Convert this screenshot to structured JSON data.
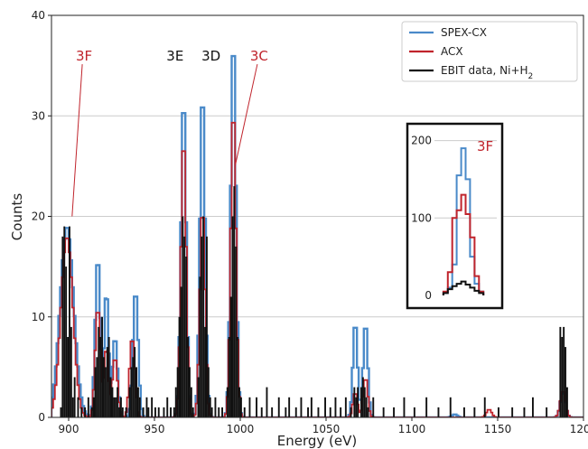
{
  "chart_data": {
    "type": "line",
    "style": "step histogram",
    "xlabel": "Energy (eV)",
    "ylabel": "Counts",
    "xlim": [
      890,
      1200
    ],
    "ylim": [
      0,
      40
    ],
    "xticks": [
      "900",
      "950",
      "1000",
      "1050",
      "1100",
      "1150",
      "1200"
    ],
    "yticks": [
      "0",
      "10",
      "20",
      "30",
      "40"
    ],
    "grid": "horizontal",
    "legend_position": "top-right",
    "colors": {
      "spex": "#4a8ac9",
      "acx": "#c0242c",
      "ebit": "#111111",
      "grid": "#cccccc"
    },
    "series": [
      {
        "name": "SPEX-CX",
        "color": "#4a8ac9",
        "peaks": [
          [
            899,
            19,
            4
          ],
          [
            917,
            16,
            1.5
          ],
          [
            922,
            12.7,
            1.2
          ],
          [
            927,
            8,
            1.5
          ],
          [
            939,
            12.7,
            1.5
          ],
          [
            967,
            32,
            1.5
          ],
          [
            978,
            32.6,
            1.5
          ],
          [
            996,
            38,
            1.5
          ],
          [
            1067,
            9.6,
            1.3
          ],
          [
            1073,
            9.5,
            1.3
          ],
          [
            1125,
            0.3,
            1.5
          ],
          [
            1188,
            2.5,
            1.5
          ]
        ]
      },
      {
        "name": "ACX",
        "color": "#c0242c",
        "peaks": [
          [
            899,
            18,
            3.5
          ],
          [
            917,
            11,
            1.5
          ],
          [
            922,
            7,
            1.2
          ],
          [
            927,
            6,
            1.5
          ],
          [
            937,
            8,
            1.5
          ],
          [
            967,
            28,
            1.5
          ],
          [
            978,
            21,
            1.5
          ],
          [
            996,
            31,
            1.5
          ],
          [
            1067,
            2.5,
            1.3
          ],
          [
            1073,
            4,
            1.3
          ],
          [
            1145,
            0.8,
            1.5
          ],
          [
            1188,
            2.7,
            1.5
          ]
        ]
      },
      {
        "name": "EBIT data, Ni+H$_2$",
        "color": "#111111",
        "bars": [
          [
            895,
            1
          ],
          [
            896,
            18
          ],
          [
            897,
            19
          ],
          [
            898,
            15
          ],
          [
            899,
            8
          ],
          [
            900,
            19
          ],
          [
            901,
            9
          ],
          [
            902,
            2
          ],
          [
            903,
            4
          ],
          [
            905,
            2
          ],
          [
            907,
            1
          ],
          [
            909,
            1
          ],
          [
            911,
            2
          ],
          [
            913,
            1
          ],
          [
            914,
            2
          ],
          [
            915,
            5
          ],
          [
            916,
            6
          ],
          [
            917,
            9
          ],
          [
            918,
            8
          ],
          [
            919,
            10
          ],
          [
            920,
            6
          ],
          [
            921,
            5
          ],
          [
            922,
            7
          ],
          [
            923,
            8
          ],
          [
            924,
            4
          ],
          [
            925,
            3
          ],
          [
            926,
            2
          ],
          [
            927,
            2
          ],
          [
            928,
            3
          ],
          [
            929,
            1
          ],
          [
            930,
            2
          ],
          [
            931,
            1
          ],
          [
            933,
            1
          ],
          [
            935,
            3
          ],
          [
            936,
            5
          ],
          [
            937,
            6
          ],
          [
            938,
            7
          ],
          [
            939,
            5
          ],
          [
            940,
            3
          ],
          [
            941,
            2
          ],
          [
            943,
            1
          ],
          [
            945,
            2
          ],
          [
            946,
            1
          ],
          [
            948,
            2
          ],
          [
            950,
            1
          ],
          [
            952,
            1
          ],
          [
            955,
            1
          ],
          [
            957,
            2
          ],
          [
            959,
            1
          ],
          [
            961,
            1
          ],
          [
            962,
            3
          ],
          [
            963,
            5
          ],
          [
            964,
            10
          ],
          [
            965,
            13
          ],
          [
            966,
            20
          ],
          [
            967,
            18
          ],
          [
            968,
            16
          ],
          [
            969,
            8
          ],
          [
            970,
            5
          ],
          [
            971,
            3
          ],
          [
            972,
            1
          ],
          [
            975,
            4
          ],
          [
            976,
            14
          ],
          [
            977,
            18
          ],
          [
            978,
            20
          ],
          [
            979,
            9
          ],
          [
            980,
            18
          ],
          [
            981,
            5
          ],
          [
            982,
            2
          ],
          [
            983,
            1
          ],
          [
            985,
            2
          ],
          [
            987,
            1
          ],
          [
            989,
            1
          ],
          [
            992,
            3
          ],
          [
            993,
            8
          ],
          [
            994,
            12
          ],
          [
            995,
            20
          ],
          [
            996,
            23
          ],
          [
            997,
            17
          ],
          [
            998,
            8
          ],
          [
            999,
            3
          ],
          [
            1000,
            2
          ],
          [
            1002,
            1
          ],
          [
            1005,
            2
          ],
          [
            1009,
            2
          ],
          [
            1012,
            1
          ],
          [
            1015,
            3
          ],
          [
            1018,
            1
          ],
          [
            1022,
            2
          ],
          [
            1026,
            1
          ],
          [
            1028,
            2
          ],
          [
            1032,
            1
          ],
          [
            1035,
            2
          ],
          [
            1039,
            1
          ],
          [
            1041,
            2
          ],
          [
            1045,
            1
          ],
          [
            1049,
            2
          ],
          [
            1052,
            1
          ],
          [
            1055,
            2
          ],
          [
            1058,
            1
          ],
          [
            1061,
            2
          ],
          [
            1064,
            1
          ],
          [
            1066,
            3
          ],
          [
            1067,
            2
          ],
          [
            1068,
            3
          ],
          [
            1070,
            3
          ],
          [
            1071,
            4
          ],
          [
            1072,
            3
          ],
          [
            1073,
            2
          ],
          [
            1074,
            1
          ],
          [
            1077,
            2
          ],
          [
            1083,
            1
          ],
          [
            1089,
            1
          ],
          [
            1095,
            2
          ],
          [
            1101,
            1
          ],
          [
            1108,
            2
          ],
          [
            1115,
            1
          ],
          [
            1122,
            2
          ],
          [
            1130,
            1
          ],
          [
            1136,
            1
          ],
          [
            1142,
            2
          ],
          [
            1150,
            1
          ],
          [
            1158,
            1
          ],
          [
            1165,
            1
          ],
          [
            1170,
            2
          ],
          [
            1178,
            1
          ],
          [
            1186,
            9
          ],
          [
            1187,
            8
          ],
          [
            1188,
            9
          ],
          [
            1189,
            7
          ],
          [
            1190,
            3
          ]
        ]
      }
    ],
    "annotations": [
      {
        "text": "3F",
        "color": "#c0242c",
        "x": 902,
        "y": 20,
        "label_x": 909,
        "label_y": 35.5
      },
      {
        "text": "3E",
        "color": "#111111",
        "x": 967,
        "y": 33,
        "label_x": 962,
        "label_y": 35.5
      },
      {
        "text": "3D",
        "color": "#111111",
        "x": 978,
        "y": 33,
        "label_x": 983,
        "label_y": 35.5
      },
      {
        "text": "3C",
        "color": "#c0242c",
        "x": 997,
        "y": 25,
        "label_x": 1011,
        "label_y": 35.5
      }
    ],
    "inset": {
      "label": "3F",
      "label_color": "#c0242c",
      "xlim": [
        872,
        928
      ],
      "ylim": [
        0,
        210
      ],
      "yticks": [
        "0",
        "100",
        "200"
      ],
      "spex_bars": [
        [
          882,
          3
        ],
        [
          886,
          10
        ],
        [
          890,
          40
        ],
        [
          894,
          155
        ],
        [
          898,
          190
        ],
        [
          902,
          150
        ],
        [
          906,
          50
        ],
        [
          910,
          15
        ],
        [
          914,
          5
        ]
      ],
      "acx_bars": [
        [
          882,
          5
        ],
        [
          886,
          30
        ],
        [
          890,
          100
        ],
        [
          894,
          110
        ],
        [
          898,
          130
        ],
        [
          902,
          105
        ],
        [
          906,
          75
        ],
        [
          910,
          25
        ],
        [
          914,
          5
        ]
      ],
      "ebit_bars": [
        [
          882,
          3
        ],
        [
          886,
          8
        ],
        [
          890,
          12
        ],
        [
          894,
          15
        ],
        [
          898,
          18
        ],
        [
          902,
          14
        ],
        [
          906,
          10
        ],
        [
          910,
          6
        ],
        [
          914,
          3
        ]
      ]
    }
  }
}
